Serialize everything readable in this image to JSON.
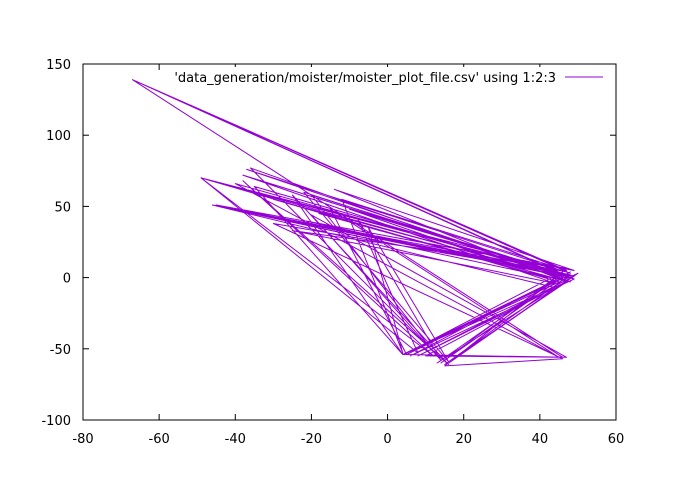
{
  "chart_data": {
    "type": "line",
    "title": "",
    "xlabel": "",
    "ylabel": "",
    "xlim": [
      -80,
      60
    ],
    "ylim": [
      -100,
      150
    ],
    "xticks": [
      -80,
      -60,
      -40,
      -20,
      0,
      20,
      40,
      60
    ],
    "yticks": [
      -100,
      -50,
      0,
      50,
      100,
      150
    ],
    "grid": false,
    "legend_position": "top-right",
    "series": [
      {
        "name": "'data_generation/moister/moister_plot_file.csv' using 1:2:3",
        "color": "#9400d3",
        "x": [
          -67,
          48,
          -37,
          46,
          -46,
          47,
          -49,
          45,
          -30,
          44,
          -22,
          49,
          -14,
          46,
          -18,
          42,
          -10,
          45,
          -38,
          44,
          -25,
          48,
          -45,
          47,
          -67,
          49,
          -35,
          4,
          48,
          15,
          47,
          5,
          46,
          17,
          45,
          8,
          49,
          13,
          44,
          4,
          -25,
          16,
          -38,
          12,
          -49,
          8,
          -8,
          14,
          -20,
          47,
          4,
          50,
          15,
          46,
          -30,
          48,
          -46,
          44,
          10,
          46,
          -67,
          47,
          -12,
          4,
          -5,
          16,
          -22,
          49,
          6,
          48,
          14,
          45,
          -40,
          45,
          -15,
          5,
          46,
          -49,
          49,
          -46,
          48,
          -36,
          12,
          -20,
          47
        ],
        "y": [
          139,
          3,
          76,
          1,
          51,
          4,
          70,
          -3,
          55,
          2,
          40,
          5,
          62,
          -2,
          45,
          0,
          48,
          3,
          72,
          -4,
          33,
          6,
          51,
          1,
          139,
          -1,
          64,
          -54,
          2,
          -61,
          -3,
          -53,
          4,
          -58,
          -6,
          -55,
          1,
          -60,
          -2,
          -54,
          58,
          -61,
          68,
          -55,
          70,
          -53,
          42,
          -58,
          44,
          -56,
          -54,
          3,
          -62,
          -57,
          38,
          2,
          51,
          -7,
          -55,
          -56,
          139,
          5,
          55,
          -53,
          35,
          -59,
          60,
          -1,
          -55,
          4,
          -60,
          2,
          66,
          -56,
          48,
          -54,
          0,
          70,
          1,
          51,
          -3,
          77,
          -52,
          58,
          2
        ]
      }
    ]
  }
}
